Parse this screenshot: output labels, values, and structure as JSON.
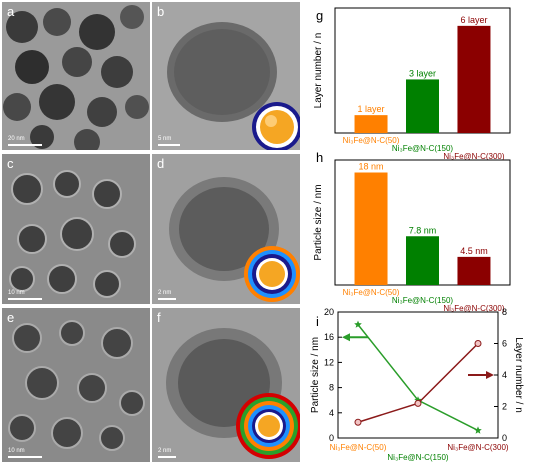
{
  "figure": {
    "panel_a": {
      "letter": "a",
      "scale": "20 nm"
    },
    "panel_b": {
      "letter": "b",
      "scale": "5 nm"
    },
    "panel_c": {
      "letter": "c",
      "scale": "10 nm"
    },
    "panel_d": {
      "letter": "d",
      "scale": "2 nm"
    },
    "panel_e": {
      "letter": "e",
      "scale": "10 nm"
    },
    "panel_f": {
      "letter": "f",
      "scale": "2 nm"
    },
    "colors": {
      "orange": "#ff8000",
      "green": "#008000",
      "darkred": "#8b0000",
      "core": "#f5a623",
      "shell_blue": "#1a1a8c",
      "shell_teal": "#1e90ff",
      "shell_red": "#d40000"
    }
  },
  "chart_data": [
    {
      "panel": "g",
      "type": "bar",
      "categories": [
        "Ni₃Fe@N-C(50)",
        "Ni₃Fe@N-C(150)",
        "Ni₃Fe@N-C(300)"
      ],
      "values": [
        1,
        3,
        6
      ],
      "data_labels": [
        "1 layer",
        "3 layer",
        "6 layer"
      ],
      "colors": [
        "#ff8000",
        "#008000",
        "#8b0000"
      ],
      "ylabel": "Layer number / n",
      "ylim": [
        0,
        7
      ]
    },
    {
      "panel": "h",
      "type": "bar",
      "categories": [
        "Ni₃Fe@N-C(50)",
        "Ni₃Fe@N-C(150)",
        "Ni₃Fe@N-C(300)"
      ],
      "values": [
        18,
        7.8,
        4.5
      ],
      "data_labels": [
        "18 nm",
        "7.8 nm",
        "4.5 nm"
      ],
      "colors": [
        "#ff8000",
        "#008000",
        "#8b0000"
      ],
      "ylabel": "Particle size / nm",
      "ylim": [
        0,
        20
      ]
    },
    {
      "panel": "i",
      "type": "line",
      "categories": [
        "Ni₃Fe@N-C(50)",
        "Ni₃Fe@N-C(150)",
        "Ni₃Fe@N-C(300)"
      ],
      "series": [
        {
          "values": [
            18,
            6,
            1.2
          ],
          "axis": "left",
          "color": "#2a9d2a",
          "marker": "star"
        },
        {
          "values": [
            1,
            2.2,
            6
          ],
          "axis": "right",
          "color": "#8b1a1a",
          "marker": "circle"
        }
      ],
      "ylabel": "Particle size / nm",
      "ylabel_right": "Layer number / n",
      "ylim": [
        0,
        20
      ],
      "ylim_right": [
        0,
        8
      ],
      "yticks": [
        0,
        4,
        8,
        12,
        16,
        20
      ],
      "yticks_right": [
        0,
        2,
        4,
        6,
        8
      ],
      "category_colors": [
        "#ff8000",
        "#008000",
        "#8b0000"
      ]
    }
  ]
}
